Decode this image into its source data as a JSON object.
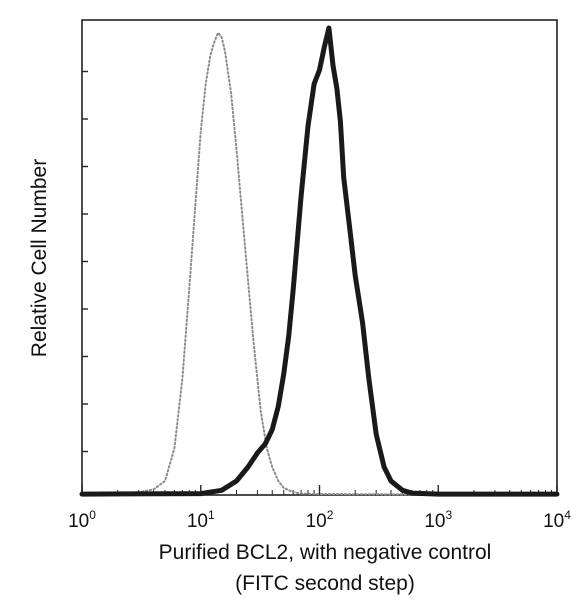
{
  "chart_data": {
    "type": "line",
    "title": "",
    "xlabel": "Purified BCL2, with negative control",
    "xlabel_line2": "(FITC second step)",
    "ylabel": "Relative Cell Number",
    "x_scale": "log",
    "xlim": [
      1,
      10000
    ],
    "ylim": [
      0,
      100
    ],
    "x_ticks": [
      {
        "base": "10",
        "exp": "0"
      },
      {
        "base": "10",
        "exp": "1"
      },
      {
        "base": "10",
        "exp": "2"
      },
      {
        "base": "10",
        "exp": "3"
      },
      {
        "base": "10",
        "exp": "4"
      }
    ],
    "grid": false,
    "legend": "none",
    "series": [
      {
        "style": "dotted",
        "color": "#8c8c8c",
        "x": [
          1,
          2,
          3,
          4,
          5,
          6,
          7,
          8,
          9,
          10,
          11,
          12,
          13,
          14,
          15,
          16,
          18,
          20,
          22,
          25,
          28,
          32,
          36,
          40,
          45,
          50,
          60,
          70,
          100,
          1000,
          10000
        ],
        "y": [
          0.2,
          0.3,
          0.6,
          1.2,
          3,
          10,
          25,
          44,
          62,
          78,
          88,
          94,
          97,
          99,
          98,
          95,
          86,
          74,
          62,
          46,
          32,
          18,
          10,
          6,
          3,
          1.5,
          0.6,
          0.3,
          0.2,
          0.1,
          0.1
        ]
      },
      {
        "style": "solid-thick",
        "color": "#1a1a1a",
        "x": [
          1,
          10,
          15,
          20,
          25,
          30,
          35,
          40,
          45,
          50,
          55,
          60,
          70,
          80,
          90,
          100,
          110,
          120,
          130,
          140,
          150,
          160,
          180,
          200,
          230,
          260,
          300,
          350,
          400,
          500,
          600,
          1000,
          10000
        ],
        "y": [
          0.2,
          0.3,
          1,
          3,
          6,
          9,
          11,
          14,
          19,
          26,
          34,
          44,
          64,
          79,
          88,
          91,
          96,
          100,
          92,
          87,
          80,
          68,
          57,
          47,
          37,
          25,
          13,
          6,
          3,
          1,
          0.4,
          0.2,
          0.2
        ]
      }
    ]
  }
}
